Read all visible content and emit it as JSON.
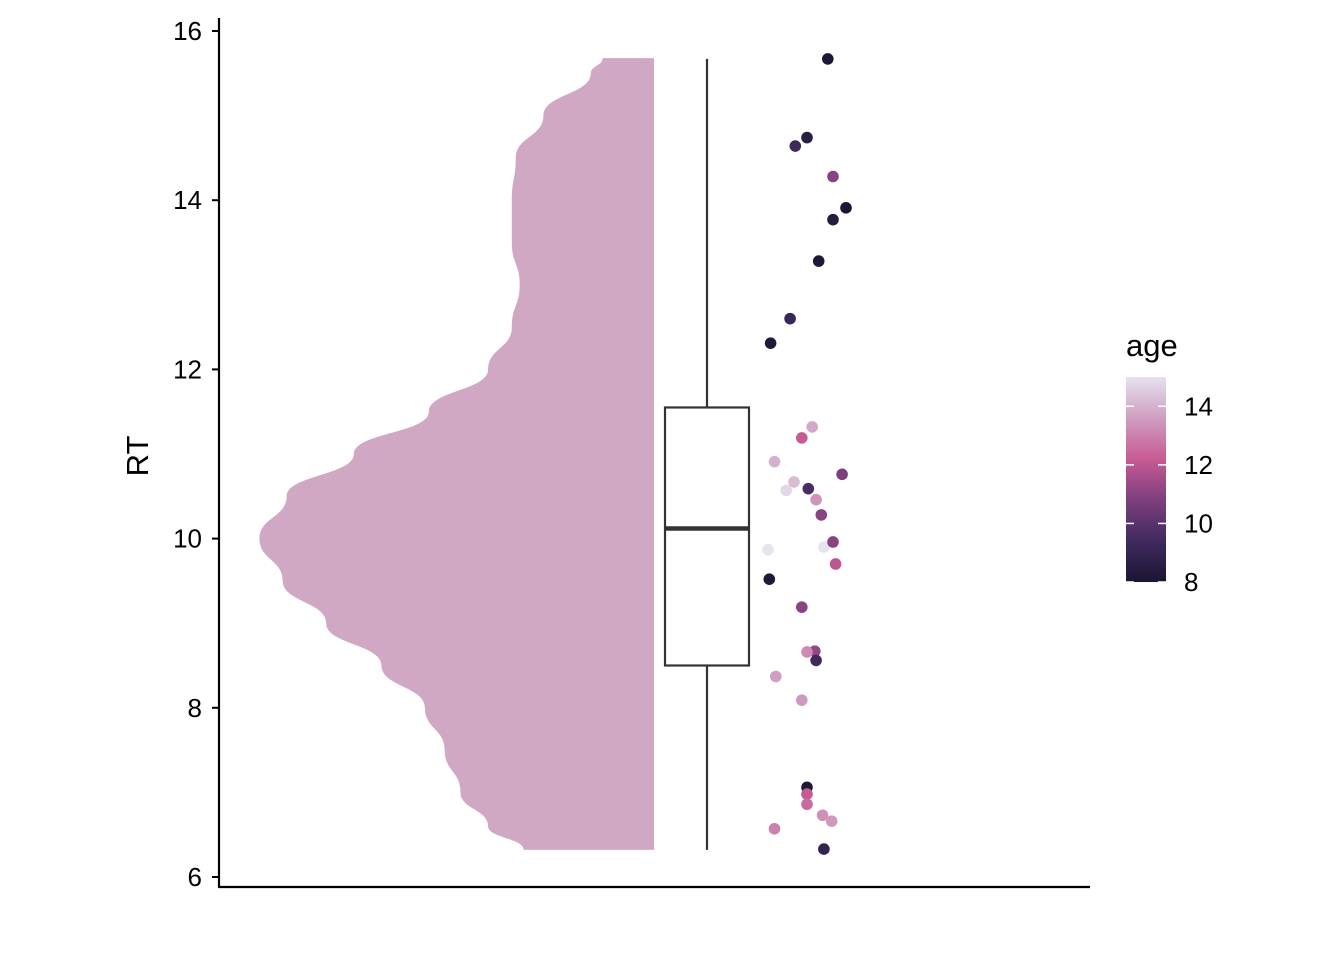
{
  "chart_data": {
    "type": "raincloud",
    "title": "",
    "xlabel": "",
    "ylabel": "RT",
    "ylim": [
      5.85,
      16.15
    ],
    "yticks": [
      6,
      8,
      10,
      12,
      14,
      16
    ],
    "ytick_labels": [
      "6",
      "8",
      "10",
      "12",
      "14",
      "16"
    ],
    "grid": false,
    "legend": {
      "title": "age",
      "position": "right",
      "type": "colorbar",
      "range": [
        8,
        15
      ],
      "ticks": [
        8,
        10,
        12,
        14
      ],
      "tick_labels": [
        "8",
        "10",
        "12",
        "14"
      ],
      "colors": [
        "#1c1533",
        "#3f2a5e",
        "#7e3f7e",
        "#c75b93",
        "#cf9ec0",
        "#e6e2ef"
      ]
    },
    "half_violin": {
      "color": "#d0a8c3",
      "density_profile": [
        {
          "y": 6.32,
          "w": 0.33
        },
        {
          "y": 6.6,
          "w": 0.42
        },
        {
          "y": 7.0,
          "w": 0.49
        },
        {
          "y": 7.5,
          "w": 0.53
        },
        {
          "y": 8.0,
          "w": 0.58
        },
        {
          "y": 8.5,
          "w": 0.69
        },
        {
          "y": 9.0,
          "w": 0.83
        },
        {
          "y": 9.5,
          "w": 0.94
        },
        {
          "y": 10.0,
          "w": 0.999
        },
        {
          "y": 10.5,
          "w": 0.93
        },
        {
          "y": 11.0,
          "w": 0.76
        },
        {
          "y": 11.5,
          "w": 0.57
        },
        {
          "y": 12.0,
          "w": 0.42
        },
        {
          "y": 12.5,
          "w": 0.36
        },
        {
          "y": 13.0,
          "w": 0.34
        },
        {
          "y": 13.5,
          "w": 0.36
        },
        {
          "y": 14.0,
          "w": 0.36
        },
        {
          "y": 14.5,
          "w": 0.35
        },
        {
          "y": 15.0,
          "w": 0.28
        },
        {
          "y": 15.5,
          "w": 0.16
        },
        {
          "y": 15.68,
          "w": 0.13
        }
      ]
    },
    "boxplot": {
      "min": 6.32,
      "q1": 8.5,
      "median": 10.12,
      "q3": 11.55,
      "max": 15.67
    },
    "points": [
      {
        "jitter": 0.56,
        "y": 15.67,
        "age": 8.1
      },
      {
        "jitter": 0.4,
        "y": 14.74,
        "age": 8.5
      },
      {
        "jitter": 0.31,
        "y": 14.64,
        "age": 9.3
      },
      {
        "jitter": 0.6,
        "y": 14.28,
        "age": 11.0
      },
      {
        "jitter": 0.7,
        "y": 13.91,
        "age": 8.0
      },
      {
        "jitter": 0.6,
        "y": 13.77,
        "age": 8.4
      },
      {
        "jitter": 0.49,
        "y": 13.28,
        "age": 8.2
      },
      {
        "jitter": 0.27,
        "y": 12.6,
        "age": 9.2
      },
      {
        "jitter": 0.12,
        "y": 12.31,
        "age": 8.2
      },
      {
        "jitter": 0.44,
        "y": 11.32,
        "age": 13.8
      },
      {
        "jitter": 0.36,
        "y": 11.19,
        "age": 12.2
      },
      {
        "jitter": 0.15,
        "y": 10.91,
        "age": 14.0
      },
      {
        "jitter": 0.67,
        "y": 10.76,
        "age": 10.8
      },
      {
        "jitter": 0.3,
        "y": 10.67,
        "age": 14.2
      },
      {
        "jitter": 0.24,
        "y": 10.57,
        "age": 14.8
      },
      {
        "jitter": 0.41,
        "y": 10.59,
        "age": 9.6
      },
      {
        "jitter": 0.47,
        "y": 10.46,
        "age": 13.4
      },
      {
        "jitter": 0.51,
        "y": 10.28,
        "age": 11.0
      },
      {
        "jitter": 0.1,
        "y": 9.87,
        "age": 15.0
      },
      {
        "jitter": 0.53,
        "y": 9.9,
        "age": 15.0
      },
      {
        "jitter": 0.6,
        "y": 9.96,
        "age": 11.0
      },
      {
        "jitter": 0.62,
        "y": 9.7,
        "age": 12.0
      },
      {
        "jitter": 0.11,
        "y": 9.52,
        "age": 8.2
      },
      {
        "jitter": 0.36,
        "y": 9.19,
        "age": 11.0
      },
      {
        "jitter": 0.46,
        "y": 8.67,
        "age": 11.2
      },
      {
        "jitter": 0.4,
        "y": 8.66,
        "age": 13.2
      },
      {
        "jitter": 0.47,
        "y": 8.56,
        "age": 9.4
      },
      {
        "jitter": 0.16,
        "y": 8.37,
        "age": 13.6
      },
      {
        "jitter": 0.36,
        "y": 8.09,
        "age": 13.5
      },
      {
        "jitter": 0.4,
        "y": 7.06,
        "age": 8.2
      },
      {
        "jitter": 0.4,
        "y": 6.98,
        "age": 12.2
      },
      {
        "jitter": 0.4,
        "y": 6.86,
        "age": 12.5
      },
      {
        "jitter": 0.52,
        "y": 6.73,
        "age": 13.3
      },
      {
        "jitter": 0.59,
        "y": 6.66,
        "age": 13.5
      },
      {
        "jitter": 0.15,
        "y": 6.57,
        "age": 13.0
      },
      {
        "jitter": 0.53,
        "y": 6.33,
        "age": 8.9
      }
    ]
  }
}
